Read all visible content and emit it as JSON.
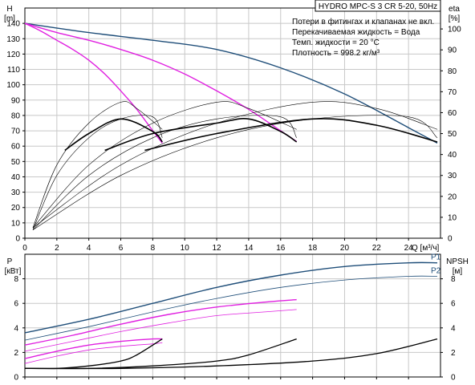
{
  "chart_data": [
    {
      "type": "line",
      "title": "HYDRO MPC-S 3 CR 5-20, 50Hz",
      "notes": [
        "Потери в фитингах и клапанах не вкл.",
        "Перекачиваемая жидкость = Вода",
        "Темп. жидкости = 20 °C",
        "Плотность = 998.2 кг/м³"
      ],
      "xlabel": "Q [м³/ч]",
      "ylabel": "H",
      "ylabel_unit": "[m]",
      "y2label": "eta",
      "y2label_unit": "[%]",
      "xlim": [
        0,
        26
      ],
      "ylim": [
        0,
        150
      ],
      "y2lim": [
        0,
        110
      ],
      "x_ticks": [
        0,
        2,
        4,
        6,
        8,
        10,
        12,
        14,
        16,
        18,
        20,
        22,
        24
      ],
      "y_ticks": [
        0,
        10,
        20,
        30,
        40,
        50,
        60,
        70,
        80,
        90,
        100,
        110,
        120,
        130,
        140
      ],
      "y2_ticks": [
        0,
        10,
        20,
        30,
        40,
        50,
        60,
        70,
        80,
        90,
        100
      ],
      "grid": true,
      "series": [
        {
          "color": "#1f4e79",
          "axis": "left",
          "width": 1.4,
          "x": [
            0,
            4,
            8,
            12,
            16,
            20,
            24,
            25.8
          ],
          "values": [
            140,
            134,
            129,
            123,
            111,
            94,
            72,
            62
          ]
        },
        {
          "color": "#e020e0",
          "axis": "left",
          "width": 1.4,
          "x": [
            0,
            2,
            4,
            6,
            8,
            10,
            12,
            14,
            16,
            17
          ],
          "values": [
            140,
            134,
            129,
            123,
            116,
            107,
            96,
            84,
            70,
            63
          ]
        },
        {
          "color": "#e020e0",
          "axis": "left",
          "width": 1.4,
          "x": [
            0,
            1,
            2,
            3,
            4,
            5,
            6,
            7,
            8,
            8.6
          ],
          "values": [
            140,
            135,
            129,
            123,
            116,
            107,
            96,
            84,
            70,
            62
          ]
        },
        {
          "color": "#000000",
          "axis": "right",
          "width": 1.6,
          "x": [
            2.5,
            4,
            6,
            8,
            8.6
          ],
          "values": [
            42,
            50,
            57,
            51,
            46
          ]
        },
        {
          "color": "#000000",
          "axis": "right",
          "width": 1.6,
          "x": [
            5,
            8,
            12,
            14,
            16,
            17
          ],
          "values": [
            42,
            50,
            55,
            57,
            51,
            46
          ]
        },
        {
          "color": "#000000",
          "axis": "right",
          "width": 1.6,
          "x": [
            7.5,
            12,
            18,
            22,
            25.8
          ],
          "values": [
            42,
            50,
            57,
            54,
            46
          ]
        },
        {
          "color": "#000000",
          "axis": "right",
          "width": 0.6,
          "x": [
            0.5,
            2,
            4,
            6,
            7,
            8.6
          ],
          "values": [
            5,
            35,
            55,
            65,
            62,
            52
          ]
        },
        {
          "color": "#000000",
          "axis": "right",
          "width": 0.6,
          "x": [
            0.5,
            2,
            4,
            6,
            8,
            8.6
          ],
          "values": [
            4,
            30,
            48,
            57,
            58,
            48
          ]
        },
        {
          "color": "#000000",
          "axis": "right",
          "width": 0.6,
          "x": [
            0.5,
            4,
            8,
            12,
            14,
            17
          ],
          "values": [
            5,
            35,
            55,
            65,
            62,
            52
          ]
        },
        {
          "color": "#000000",
          "axis": "right",
          "width": 0.6,
          "x": [
            0.5,
            4,
            8,
            12,
            16,
            17
          ],
          "values": [
            4,
            30,
            48,
            57,
            58,
            48
          ]
        },
        {
          "color": "#000000",
          "axis": "right",
          "width": 0.6,
          "x": [
            0.5,
            6,
            12,
            18,
            22,
            25.8
          ],
          "values": [
            5,
            35,
            55,
            65,
            62,
            52
          ]
        },
        {
          "color": "#000000",
          "axis": "right",
          "width": 0.6,
          "x": [
            0.5,
            6,
            12,
            18,
            24,
            25.8
          ],
          "values": [
            4,
            30,
            48,
            57,
            58,
            48
          ]
        }
      ]
    },
    {
      "type": "line",
      "ylabel": "P",
      "ylabel_unit": "[кВт]",
      "y2label": "NPSH",
      "y2label_unit": "[м]",
      "xlim": [
        0,
        26
      ],
      "ylim": [
        0,
        10
      ],
      "y2lim": [
        0,
        10
      ],
      "y_ticks": [
        0,
        2,
        4,
        6,
        8
      ],
      "y2_ticks": [
        0,
        2,
        4,
        6,
        8
      ],
      "grid": true,
      "series": [
        {
          "name": "P1",
          "color": "#1f4e79",
          "width": 1.4,
          "x": [
            0,
            4,
            8,
            12,
            16,
            20,
            24,
            25.8
          ],
          "values": [
            3.6,
            4.7,
            6.0,
            7.3,
            8.3,
            9.0,
            9.3,
            9.3
          ]
        },
        {
          "name": "P2",
          "color": "#1f4e79",
          "width": 0.8,
          "x": [
            0,
            4,
            8,
            12,
            16,
            20,
            24,
            25.8
          ],
          "values": [
            3.0,
            4.1,
            5.3,
            6.4,
            7.3,
            7.9,
            8.2,
            8.2
          ]
        },
        {
          "color": "#e020e0",
          "width": 1.4,
          "x": [
            0,
            3,
            6,
            9,
            12,
            15,
            17
          ],
          "values": [
            2.6,
            3.4,
            4.3,
            5.1,
            5.7,
            6.1,
            6.3
          ]
        },
        {
          "color": "#e020e0",
          "width": 0.8,
          "x": [
            0,
            3,
            6,
            9,
            12,
            15,
            17
          ],
          "values": [
            2.1,
            2.9,
            3.7,
            4.4,
            5.0,
            5.3,
            5.5
          ]
        },
        {
          "color": "#e020e0",
          "width": 1.4,
          "x": [
            0,
            2,
            4,
            6,
            8,
            8.6
          ],
          "values": [
            1.5,
            2.1,
            2.6,
            2.9,
            3.1,
            3.1
          ]
        },
        {
          "color": "#e020e0",
          "width": 0.8,
          "x": [
            0,
            2,
            4,
            6,
            8,
            8.6
          ],
          "values": [
            1.1,
            1.7,
            2.2,
            2.5,
            2.7,
            2.8
          ]
        },
        {
          "color": "#000000",
          "width": 1.3,
          "x": [
            0,
            2,
            4,
            6,
            7,
            8.6
          ],
          "values": [
            0.7,
            0.7,
            0.9,
            1.3,
            1.8,
            3.1
          ]
        },
        {
          "color": "#000000",
          "width": 1.3,
          "x": [
            0,
            4,
            8,
            12,
            14,
            17
          ],
          "values": [
            0.7,
            0.7,
            0.9,
            1.3,
            1.8,
            3.1
          ]
        },
        {
          "color": "#000000",
          "width": 1.3,
          "x": [
            0,
            6,
            12,
            18,
            22,
            25.8
          ],
          "values": [
            0.7,
            0.7,
            0.9,
            1.3,
            1.9,
            3.1
          ]
        }
      ]
    }
  ]
}
